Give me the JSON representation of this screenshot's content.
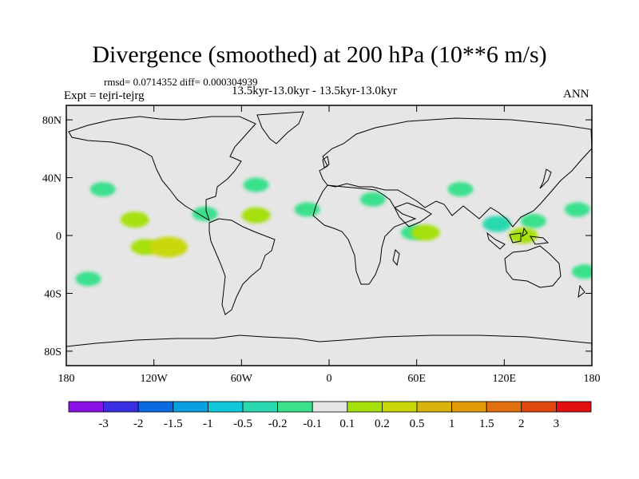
{
  "title": "Divergence (smoothed) at 200 hPa (10**6 m/s)",
  "rmsd_line": "rmsd= 0.0714352 diff= 0.000304939",
  "expt_line": "Expt = tejri-tejrg",
  "period_line": "13.5kyr-13.0kyr - 13.5kyr-13.0kyr",
  "season": "ANN",
  "lat_ticks": [
    {
      "label": "80N",
      "lat": 80
    },
    {
      "label": "40N",
      "lat": 40
    },
    {
      "label": "0",
      "lat": 0
    },
    {
      "label": "40S",
      "lat": -40
    },
    {
      "label": "80S",
      "lat": -80
    }
  ],
  "lon_ticks": [
    {
      "label": "180",
      "lon": -180
    },
    {
      "label": "120W",
      "lon": -120
    },
    {
      "label": "60W",
      "lon": -60
    },
    {
      "label": "0",
      "lon": 0
    },
    {
      "label": "60E",
      "lon": 60
    },
    {
      "label": "120E",
      "lon": 120
    },
    {
      "label": "180",
      "lon": 180
    }
  ],
  "colorbar": {
    "colors": [
      "#8a12e6",
      "#3a2fe0",
      "#0a6ae0",
      "#0aa0e0",
      "#10c8d8",
      "#2ad8b0",
      "#3ae08c",
      "#e6e6e6",
      "#a6e00a",
      "#c8d80a",
      "#d8b40a",
      "#e09a0a",
      "#e07010",
      "#e04810",
      "#e01010"
    ],
    "labels": [
      "-3",
      "-2",
      "-1.5",
      "-1",
      "-0.5",
      "-0.2",
      "-0.1",
      "0.1",
      "0.2",
      "0.5",
      "1",
      "1.5",
      "2",
      "3"
    ]
  },
  "chart_data": {
    "type": "heatmap",
    "title": "Divergence (smoothed) at 200 hPa (10**6 m/s)",
    "projection": "cylindrical equidistant",
    "lon_range": [
      -180,
      180
    ],
    "lat_range": [
      -90,
      90
    ],
    "contour_levels": [
      -3,
      -2,
      -1.5,
      -1,
      -0.5,
      -0.2,
      -0.1,
      0.1,
      0.2,
      0.5,
      1,
      1.5,
      2,
      3
    ],
    "anomalies": [
      {
        "lon": -155,
        "lat": 32,
        "value": -0.1
      },
      {
        "lon": -145,
        "lat": 12,
        "value": 0.1
      },
      {
        "lon": -133,
        "lat": 11,
        "value": 0.2
      },
      {
        "lon": -115,
        "lat": 15,
        "value": 0.1
      },
      {
        "lon": -140,
        "lat": -3,
        "value": 0.1
      },
      {
        "lon": -126,
        "lat": -8,
        "value": 0.2
      },
      {
        "lon": -110,
        "lat": -8,
        "value": 0.5
      },
      {
        "lon": -155,
        "lat": -16,
        "value": 0.1
      },
      {
        "lon": -165,
        "lat": -30,
        "value": -0.1
      },
      {
        "lon": -100,
        "lat": -20,
        "value": 0.1
      },
      {
        "lon": -85,
        "lat": 15,
        "value": -0.1
      },
      {
        "lon": -50,
        "lat": 35,
        "value": -0.1
      },
      {
        "lon": -50,
        "lat": 14,
        "value": 0.2
      },
      {
        "lon": -15,
        "lat": 18,
        "value": -0.1
      },
      {
        "lon": -15,
        "lat": 0,
        "value": 0.1
      },
      {
        "lon": -35,
        "lat": -12,
        "value": 0.1
      },
      {
        "lon": 8,
        "lat": -3,
        "value": 0.1
      },
      {
        "lon": 30,
        "lat": 25,
        "value": -0.1
      },
      {
        "lon": 58,
        "lat": 2,
        "value": -0.1
      },
      {
        "lon": 66,
        "lat": 2,
        "value": 0.2
      },
      {
        "lon": 70,
        "lat": -18,
        "value": 0.1
      },
      {
        "lon": 115,
        "lat": 8,
        "value": -0.2
      },
      {
        "lon": 140,
        "lat": 10,
        "value": -0.1
      },
      {
        "lon": 155,
        "lat": 18,
        "value": 0.1
      },
      {
        "lon": 133,
        "lat": 0,
        "value": 0.2
      },
      {
        "lon": 170,
        "lat": 18,
        "value": -0.1
      },
      {
        "lon": 100,
        "lat": -3,
        "value": 0.1
      },
      {
        "lon": 160,
        "lat": -15,
        "value": 0.1
      },
      {
        "lon": 175,
        "lat": -25,
        "value": -0.1
      },
      {
        "lon": 90,
        "lat": 32,
        "value": -0.1
      }
    ]
  }
}
